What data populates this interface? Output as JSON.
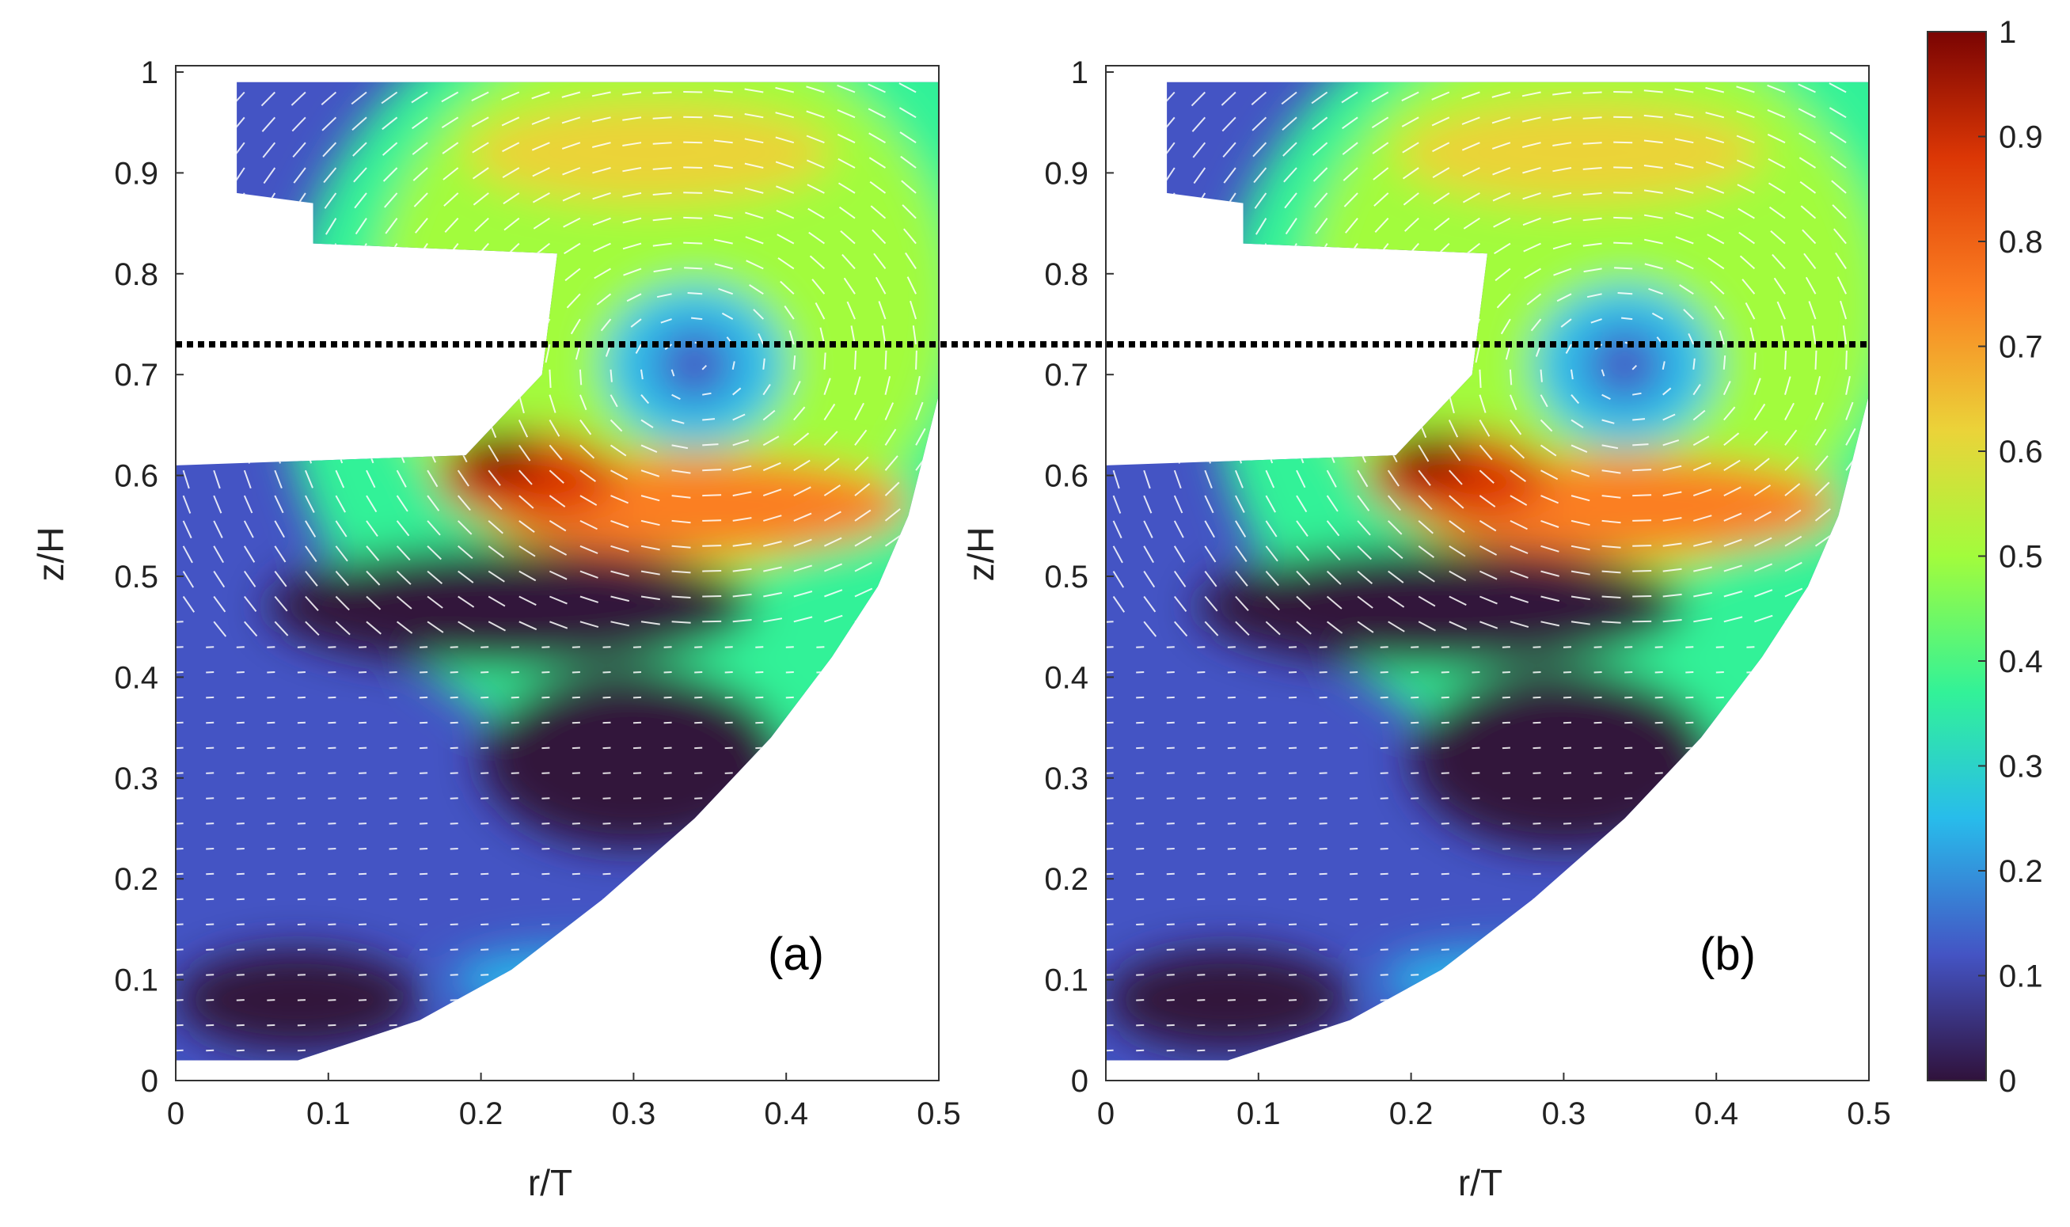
{
  "colors": {
    "c0": "#30123b",
    "c1": "#4454c4",
    "c2": "#28bceb",
    "c3": "#32f298",
    "c4": "#a2fc3c",
    "c5": "#ebd339",
    "c6": "#fb7e21",
    "c7": "#dc3705",
    "c8": "#7a0403",
    "arrow": "#ffffff",
    "dotted_line": "#000000",
    "axis": "#333333"
  },
  "chart_data": [
    {
      "type": "heatmap",
      "panel_label": "(a)",
      "xlabel": "r/T",
      "ylabel": "z/H",
      "xlim": [
        0,
        0.5
      ],
      "ylim": [
        0,
        1
      ],
      "x_ticks": [
        "0",
        "0.1",
        "0.2",
        "0.3",
        "0.4",
        "0.5"
      ],
      "y_ticks": [
        "0",
        "0.1",
        "0.2",
        "0.3",
        "0.4",
        "0.5",
        "0.6",
        "0.7",
        "0.8",
        "0.9",
        "1"
      ],
      "vortex_center": [
        0.34,
        0.71
      ],
      "max_velocity_region": [
        0.21,
        0.62
      ],
      "dotted_line_z": 0.73
    },
    {
      "type": "heatmap",
      "panel_label": "(b)",
      "xlabel": "r/T",
      "ylabel": "z/H",
      "xlim": [
        0,
        0.5
      ],
      "ylim": [
        0,
        1
      ],
      "x_ticks": [
        "0",
        "0.1",
        "0.2",
        "0.3",
        "0.4",
        "0.5"
      ],
      "y_ticks": [
        "0",
        "0.1",
        "0.2",
        "0.3",
        "0.4",
        "0.5",
        "0.6",
        "0.7",
        "0.8",
        "0.9",
        "1"
      ],
      "vortex_center": [
        0.34,
        0.71
      ],
      "max_velocity_region": [
        0.21,
        0.62
      ],
      "dotted_line_z": 0.73
    }
  ],
  "colorbar": {
    "min": 0,
    "max": 1,
    "ticks": [
      "0",
      "0.1",
      "0.2",
      "0.3",
      "0.4",
      "0.5",
      "0.6",
      "0.7",
      "0.8",
      "0.9",
      "1"
    ]
  }
}
